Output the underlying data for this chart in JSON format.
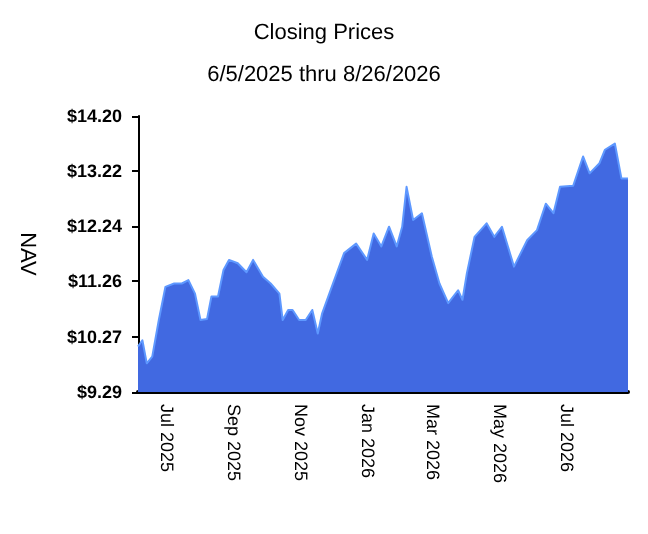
{
  "chart_data": {
    "type": "area",
    "title": "Closing Prices",
    "subtitle": "6/5/2025 thru 8/26/2026",
    "ylabel": "NAV",
    "x": [
      "2025-06-05",
      "2025-06-09",
      "2025-06-13",
      "2025-06-18",
      "2025-06-24",
      "2025-06-30",
      "2025-07-08",
      "2025-07-15",
      "2025-07-21",
      "2025-07-27",
      "2025-08-01",
      "2025-08-07",
      "2025-08-11",
      "2025-08-17",
      "2025-08-22",
      "2025-08-27",
      "2025-09-04",
      "2025-09-12",
      "2025-09-18",
      "2025-09-27",
      "2025-10-04",
      "2025-10-12",
      "2025-10-15",
      "2025-10-20",
      "2025-10-24",
      "2025-10-30",
      "2025-11-05",
      "2025-11-11",
      "2025-11-16",
      "2025-11-20",
      "2025-12-01",
      "2025-12-10",
      "2025-12-21",
      "2025-12-31",
      "2026-01-06",
      "2026-01-13",
      "2026-01-20",
      "2026-01-27",
      "2026-02-01",
      "2026-02-05",
      "2026-02-11",
      "2026-02-19",
      "2026-02-28",
      "2026-03-07",
      "2026-03-15",
      "2026-03-24",
      "2026-03-28",
      "2026-04-01",
      "2026-04-08",
      "2026-04-19",
      "2026-04-26",
      "2026-05-03",
      "2026-05-14",
      "2026-05-26",
      "2026-06-04",
      "2026-06-12",
      "2026-06-19",
      "2026-06-25",
      "2026-07-07",
      "2026-07-16",
      "2026-07-22",
      "2026-07-31",
      "2026-08-05",
      "2026-08-14",
      "2026-08-20",
      "2026-08-26"
    ],
    "series": [
      {
        "color": "#4169e1",
        "values": [
          10.1,
          10.21,
          9.8,
          9.92,
          10.57,
          11.16,
          11.22,
          11.22,
          11.28,
          11.04,
          10.57,
          10.59,
          10.99,
          10.99,
          11.46,
          11.64,
          11.58,
          11.42,
          11.64,
          11.34,
          11.22,
          11.04,
          10.57,
          10.75,
          10.75,
          10.57,
          10.57,
          10.75,
          10.33,
          10.69,
          11.28,
          11.76,
          11.93,
          11.64,
          12.11,
          11.88,
          12.23,
          11.88,
          12.23,
          12.94,
          12.35,
          12.47,
          11.7,
          11.22,
          10.87,
          11.1,
          10.93,
          11.4,
          12.05,
          12.29,
          12.05,
          12.23,
          11.52,
          11.99,
          12.17,
          12.64,
          12.47,
          12.94,
          12.96,
          13.48,
          13.18,
          13.36,
          13.6,
          13.71,
          13.09,
          13.09
        ]
      }
    ],
    "ylim": [
      9.29,
      14.2
    ],
    "yticks": [
      {
        "value": 9.29,
        "label": "$9.29"
      },
      {
        "value": 10.27,
        "label": "$10.27"
      },
      {
        "value": 11.26,
        "label": "$11.26"
      },
      {
        "value": 12.24,
        "label": "$12.24"
      },
      {
        "value": 13.22,
        "label": "$13.22"
      },
      {
        "value": 14.2,
        "label": "$14.20"
      }
    ],
    "xlim": [
      "2025-06-05",
      "2026-08-26"
    ],
    "xticks": [
      {
        "value": "2025-07-01",
        "label": "Jul 2025"
      },
      {
        "value": "2025-09-01",
        "label": "Sep 2025"
      },
      {
        "value": "2025-11-01",
        "label": "Nov 2025"
      },
      {
        "value": "2026-01-01",
        "label": "Jan 2026"
      },
      {
        "value": "2026-03-01",
        "label": "Mar 2026"
      },
      {
        "value": "2026-05-01",
        "label": "May 2026"
      },
      {
        "value": "2026-07-01",
        "label": "Jul 2026"
      }
    ],
    "grid": false,
    "marker": "none"
  }
}
